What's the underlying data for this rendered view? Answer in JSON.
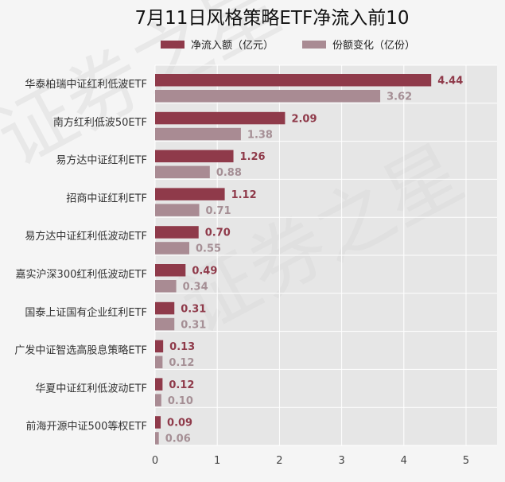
{
  "chart_data": {
    "type": "bar",
    "orientation": "horizontal",
    "title": "7月11日风格策略ETF净流入前10",
    "categories": [
      "华泰柏瑞中证红利低波ETF",
      "南方红利低波50ETF",
      "易方达中证红利ETF",
      "招商中证红利ETF",
      "易方达中证红利低波动ETF",
      "嘉实沪深300红利低波动ETF",
      "国泰上证国有企业红利ETF",
      "广发中证智选高股息策略ETF",
      "华夏中证红利低波动ETF",
      "前海开源中证500等权ETF"
    ],
    "series": [
      {
        "name": "净流入额（亿元）",
        "color": "#8f3a4a",
        "values": [
          4.44,
          2.09,
          1.26,
          1.12,
          0.7,
          0.49,
          0.31,
          0.13,
          0.12,
          0.09
        ],
        "labels": [
          "4.44",
          "2.09",
          "1.26",
          "1.12",
          "0.70",
          "0.49",
          "0.31",
          "0.13",
          "0.12",
          "0.09"
        ]
      },
      {
        "name": "份额变化（亿份）",
        "color": "#a98b93",
        "values": [
          3.62,
          1.38,
          0.88,
          0.71,
          0.55,
          0.34,
          0.31,
          0.12,
          0.1,
          0.06
        ],
        "labels": [
          "3.62",
          "1.38",
          "0.88",
          "0.71",
          "0.55",
          "0.34",
          "0.31",
          "0.12",
          "0.10",
          "0.06"
        ]
      }
    ],
    "xticks": [
      "0",
      "1",
      "2",
      "3",
      "4",
      "5"
    ],
    "xlim": [
      0,
      5.5
    ],
    "grid": true,
    "legend": "top",
    "watermark": "证券之星"
  }
}
